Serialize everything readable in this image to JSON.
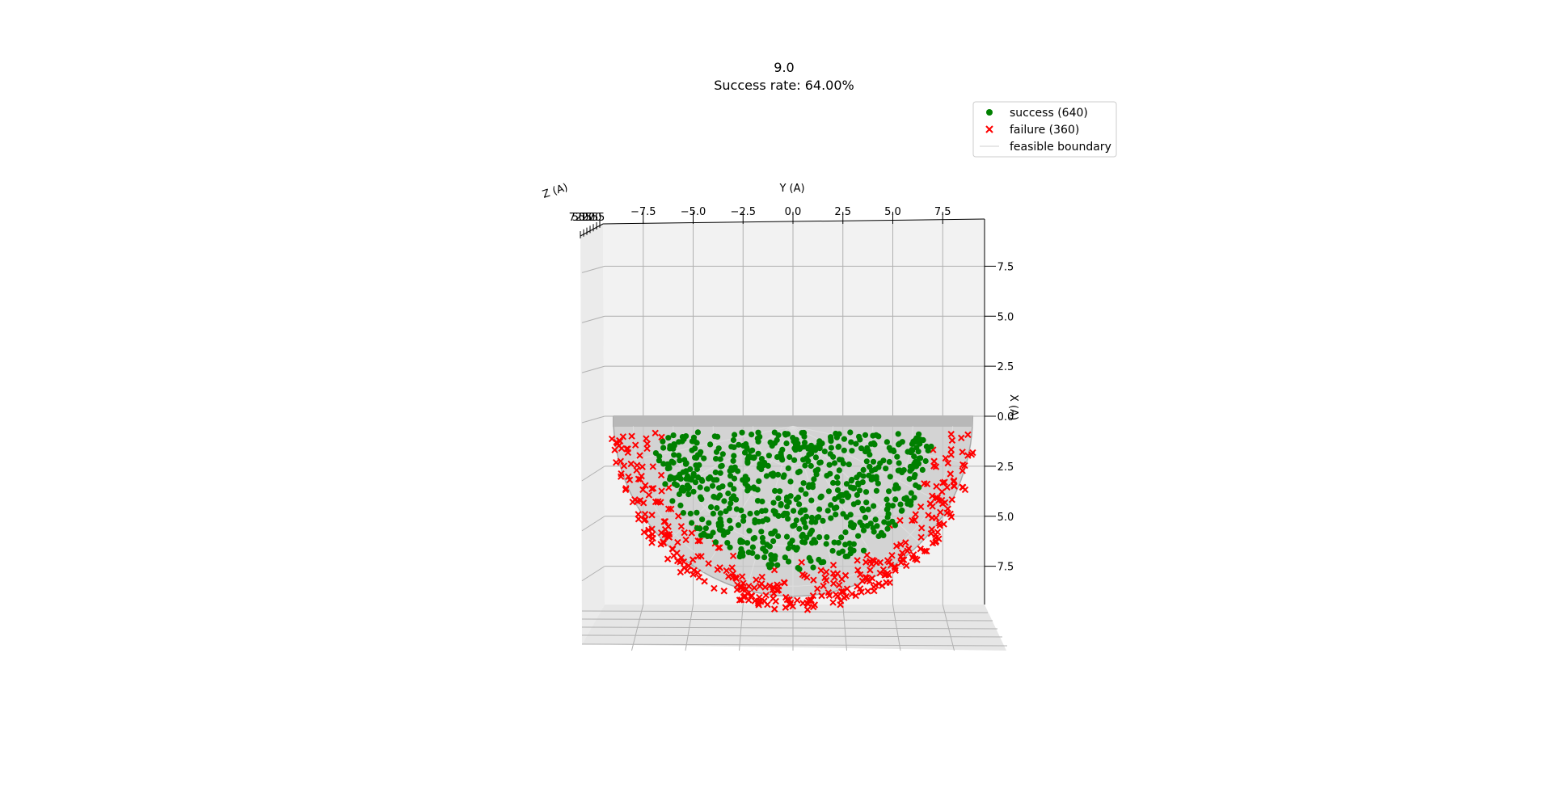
{
  "chart_data": {
    "type": "scatter",
    "title": "9.0",
    "subtitle": "Success rate: 64.00%",
    "xlabel": "Y (A)",
    "ylabel": "X (A)",
    "zlabel": "Z (A)",
    "xlim": [
      -9.7,
      9.5
    ],
    "ylim": [
      -9.0,
      9.2
    ],
    "x_ticks": [
      "−7.5",
      "−5.0",
      "−2.5",
      "0.0",
      "2.5",
      "5.0",
      "7.5"
    ],
    "x_tick_values": [
      -7.5,
      -5.0,
      -2.5,
      0.0,
      2.5,
      5.0,
      7.5
    ],
    "y_ticks": [
      "7.5",
      "5.0",
      "2.5",
      "0.0",
      "2.5",
      "5.0",
      "7.5"
    ],
    "y_tick_values": [
      -7.5,
      -5.0,
      -2.5,
      0.0,
      2.5,
      5.0,
      7.5
    ],
    "z_ticks": [
      "7.5",
      "5.0",
      "2.5",
      "0.0",
      "2.5",
      "5.0",
      "7.5"
    ],
    "grid": true,
    "legend_position": "top-right",
    "boundary": {
      "name": "feasible boundary",
      "radius": 9.0,
      "color": "#cfcfcf"
    },
    "series": [
      {
        "name": "success (640)",
        "marker": "circle",
        "color": "#008000",
        "count": 640,
        "max_radius": 7.0
      },
      {
        "name": "failure (360)",
        "marker": "x",
        "color": "#ff0000",
        "count": 360,
        "min_radius": 6.5,
        "max_radius": 9.0
      }
    ]
  }
}
